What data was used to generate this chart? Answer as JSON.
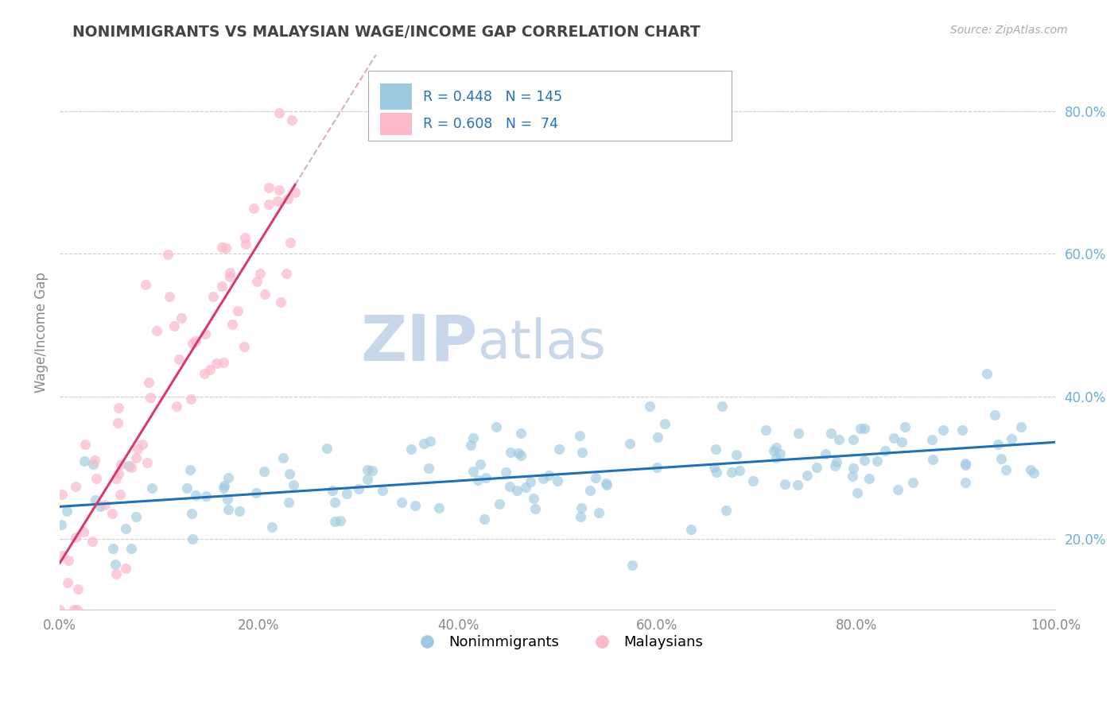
{
  "title": "NONIMMIGRANTS VS MALAYSIAN WAGE/INCOME GAP CORRELATION CHART",
  "source_text": "Source: ZipAtlas.com",
  "ylabel": "Wage/Income Gap",
  "xlim": [
    0.0,
    1.0
  ],
  "ylim": [
    0.1,
    0.88
  ],
  "xticks": [
    0.0,
    0.2,
    0.4,
    0.6,
    0.8,
    1.0
  ],
  "xticklabels": [
    "0.0%",
    "20.0%",
    "40.0%",
    "60.0%",
    "80.0%",
    "100.0%"
  ],
  "ytick_vals": [
    0.2,
    0.4,
    0.6,
    0.8
  ],
  "yticklabels_right": [
    "20.0%",
    "40.0%",
    "60.0%",
    "80.0%"
  ],
  "blue_color": "#9ecae1",
  "pink_color": "#fcb9c8",
  "blue_line_color": "#2171b5",
  "pink_line_color": "#d63a6e",
  "pink_line_ext_color": "#d8b0bc",
  "legend_blue_r": "0.448",
  "legend_blue_n": "145",
  "legend_pink_r": "0.608",
  "legend_pink_n": " 74",
  "watermark_zip": "ZIP",
  "watermark_atlas": "atlas",
  "watermark_color": "#c8d8ea",
  "background_color": "#ffffff",
  "grid_color": "#cccccc",
  "title_color": "#444444",
  "axis_label_color": "#888888",
  "right_tick_color": "#6baed6",
  "legend_label_blue": "Nonimmigrants",
  "legend_label_pink": "Malaysians"
}
